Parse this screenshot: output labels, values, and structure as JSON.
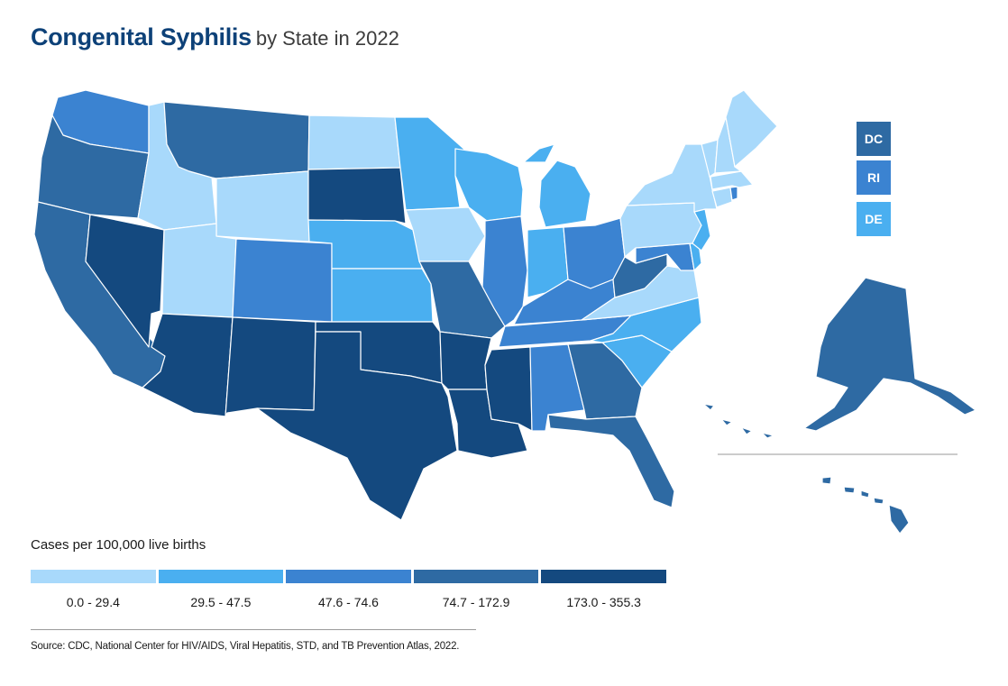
{
  "title": {
    "main": "Congenital Syphilis",
    "sub": "by State in 2022"
  },
  "colors": {
    "c1": "#a8d9fb",
    "c2": "#4aaff0",
    "c3": "#3b83d1",
    "c4": "#2e6aa3",
    "c5": "#14497f"
  },
  "legend": {
    "title": "Cases per 100,000 live births",
    "bins": [
      {
        "label": "0.0 - 29.4",
        "color": "#a8d9fb"
      },
      {
        "label": "29.5 - 47.5",
        "color": "#4aaff0"
      },
      {
        "label": "47.6 - 74.6",
        "color": "#3b83d1"
      },
      {
        "label": "74.7 - 172.9",
        "color": "#2e6aa3"
      },
      {
        "label": "173.0 - 355.3",
        "color": "#14497f"
      }
    ]
  },
  "small_states": [
    {
      "label": "DC",
      "bin": 4
    },
    {
      "label": "RI",
      "bin": 3
    },
    {
      "label": "DE",
      "bin": 2
    }
  ],
  "state_bins": {
    "WA": 3,
    "OR": 4,
    "CA": 4,
    "NV": 5,
    "ID": 1,
    "MT": 4,
    "WY": 1,
    "UT": 1,
    "AZ": 5,
    "CO": 3,
    "NM": 5,
    "ND": 1,
    "SD": 5,
    "NE": 2,
    "KS": 2,
    "OK": 5,
    "TX": 5,
    "MN": 2,
    "IA": 1,
    "MO": 4,
    "AR": 5,
    "LA": 5,
    "WI": 2,
    "IL": 3,
    "MI": 2,
    "IN": 2,
    "OH": 3,
    "KY": 3,
    "TN": 3,
    "MS": 5,
    "AL": 3,
    "GA": 4,
    "FL": 4,
    "SC": 2,
    "NC": 2,
    "VA": 1,
    "WV": 4,
    "PA": 1,
    "NY": 1,
    "NJ": 2,
    "MD": 3,
    "DE": 2,
    "CT": 1,
    "RI": 3,
    "MA": 1,
    "VT": 1,
    "NH": 1,
    "ME": 1,
    "AK": 4,
    "HI": 4
  },
  "source": "Source: CDC, National Center for HIV/AIDS, Viral Hepatitis, STD, and TB Prevention Atlas, 2022."
}
